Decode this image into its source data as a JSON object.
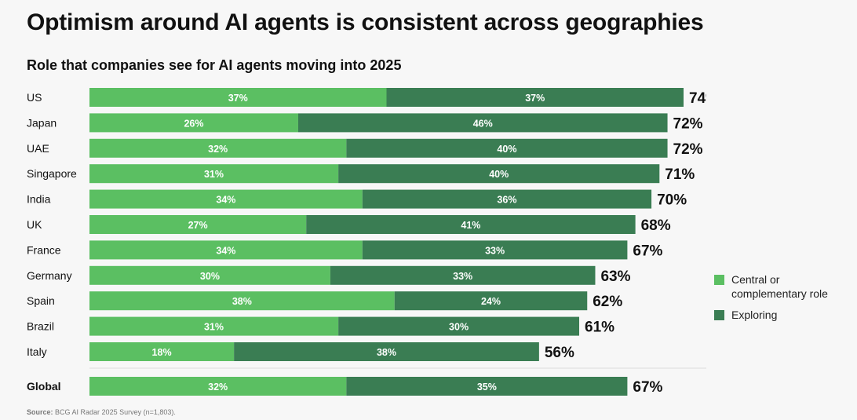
{
  "title": "Optimism around AI agents is consistent across geographies",
  "subtitle": "Role that companies see for AI agents moving into 2025",
  "source": {
    "label": "Source:",
    "text": "BCG AI Radar 2025 Survey (n=1,803)."
  },
  "colors": {
    "central": "#5bbf62",
    "exploring": "#3a7d53"
  },
  "chart_data": {
    "type": "bar",
    "orientation": "horizontal",
    "stacked": true,
    "title": "Role that companies see for AI agents moving into 2025",
    "series": [
      {
        "name": "Central or complementary role",
        "values": [
          37,
          26,
          32,
          31,
          34,
          27,
          34,
          30,
          38,
          31,
          18
        ]
      },
      {
        "name": "Exploring",
        "values": [
          37,
          46,
          40,
          40,
          36,
          41,
          33,
          33,
          24,
          30,
          38
        ]
      }
    ],
    "categories": [
      "US",
      "Japan",
      "UAE",
      "Singapore",
      "India",
      "UK",
      "France",
      "Germany",
      "Spain",
      "Brazil",
      "Italy"
    ],
    "totals": [
      74,
      72,
      72,
      71,
      70,
      68,
      67,
      63,
      62,
      61,
      56
    ],
    "global": {
      "label": "Global",
      "values": [
        32,
        35
      ],
      "total": 67
    },
    "value_suffix": "%",
    "xlim": [
      0,
      74
    ]
  },
  "legend": [
    {
      "label": "Central or complementary role"
    },
    {
      "label": "Exploring"
    }
  ]
}
